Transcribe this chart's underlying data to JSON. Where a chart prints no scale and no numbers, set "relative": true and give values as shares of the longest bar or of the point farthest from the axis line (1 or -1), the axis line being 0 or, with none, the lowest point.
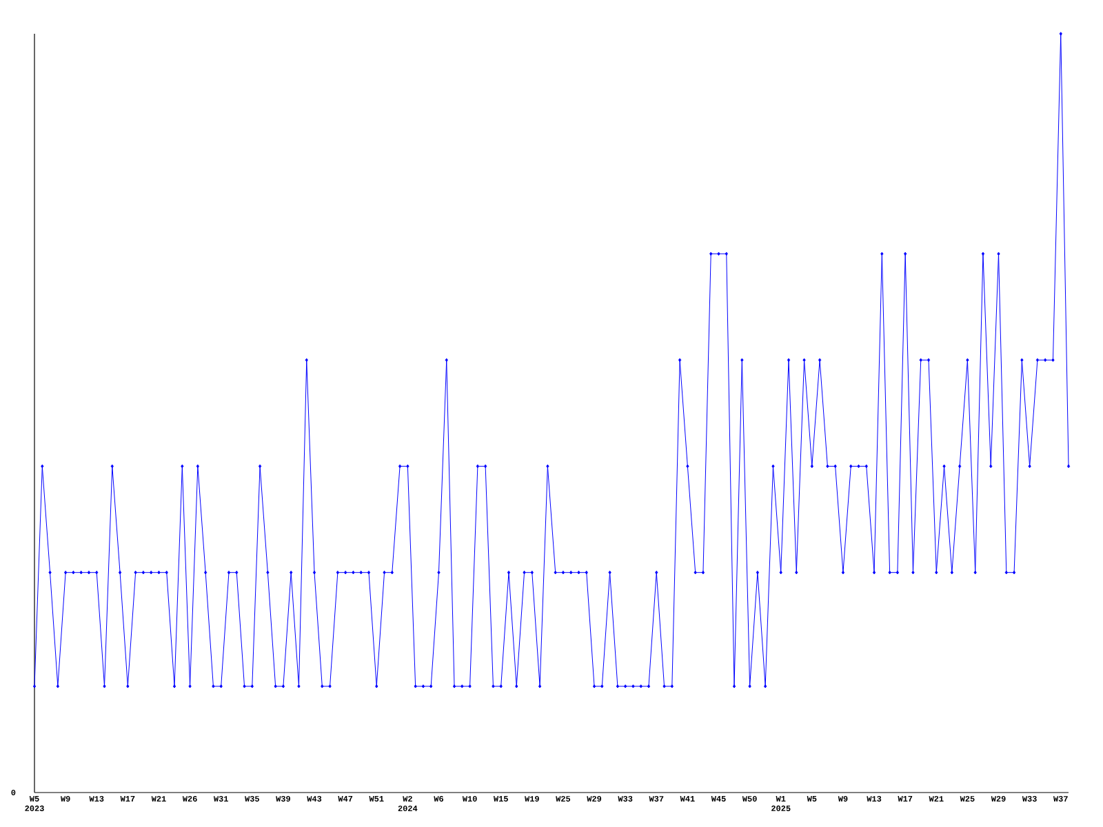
{
  "chart_data": {
    "type": "line",
    "relative": true,
    "color": "#0000ff",
    "marker": "diamond",
    "line_style": "solid",
    "categories": [
      "W5 2023",
      null,
      null,
      null,
      "W9",
      null,
      null,
      null,
      "W13",
      null,
      null,
      null,
      "W17",
      null,
      null,
      null,
      "W21",
      null,
      null,
      null,
      "W26",
      null,
      null,
      null,
      "W31",
      null,
      null,
      null,
      "W35",
      null,
      null,
      null,
      "W39",
      null,
      null,
      null,
      "W43",
      null,
      null,
      null,
      "W47",
      null,
      null,
      null,
      "W51",
      null,
      null,
      null,
      "W2 2024",
      null,
      null,
      null,
      "W6",
      null,
      null,
      null,
      "W10",
      null,
      null,
      null,
      "W15",
      null,
      null,
      null,
      "W19",
      null,
      null,
      null,
      "W25",
      null,
      null,
      null,
      "W29",
      null,
      null,
      null,
      "W33",
      null,
      null,
      null,
      "W37",
      null,
      null,
      null,
      "W41",
      null,
      null,
      null,
      "W45",
      null,
      null,
      null,
      "W50",
      null,
      null,
      null,
      "W1 2025",
      null,
      null,
      null,
      "W5",
      null,
      null,
      null,
      "W9",
      null,
      null,
      null,
      "W13",
      null,
      null,
      null,
      "W17",
      null,
      null,
      null,
      "W21",
      null,
      null,
      null,
      "W25",
      null,
      null,
      null,
      "W29",
      null,
      null,
      null,
      "W33",
      null,
      null,
      null,
      "W37",
      null
    ],
    "values": [
      0.14,
      0.43,
      0.29,
      0.14,
      0.29,
      0.29,
      0.29,
      0.29,
      0.29,
      0.14,
      0.43,
      0.29,
      0.14,
      0.29,
      0.29,
      0.29,
      0.29,
      0.29,
      0.14,
      0.43,
      0.14,
      0.43,
      0.29,
      0.14,
      0.14,
      0.29,
      0.29,
      0.14,
      0.14,
      0.43,
      0.29,
      0.14,
      0.14,
      0.29,
      0.14,
      0.57,
      0.29,
      0.14,
      0.14,
      0.29,
      0.29,
      0.29,
      0.29,
      0.29,
      0.14,
      0.29,
      0.29,
      0.43,
      0.43,
      0.14,
      0.14,
      0.14,
      0.29,
      0.57,
      0.14,
      0.14,
      0.14,
      0.43,
      0.43,
      0.14,
      0.14,
      0.29,
      0.14,
      0.29,
      0.29,
      0.14,
      0.43,
      0.29,
      0.29,
      0.29,
      0.29,
      0.29,
      0.14,
      0.14,
      0.29,
      0.14,
      0.14,
      0.14,
      0.14,
      0.14,
      0.29,
      0.14,
      0.14,
      0.57,
      0.43,
      0.29,
      0.29,
      0.71,
      0.71,
      0.71,
      0.14,
      0.57,
      0.14,
      0.29,
      0.14,
      0.43,
      0.29,
      0.57,
      0.29,
      0.57,
      0.43,
      0.57,
      0.43,
      0.43,
      0.29,
      0.43,
      0.43,
      0.43,
      0.29,
      0.71,
      0.29,
      0.29,
      0.71,
      0.29,
      0.57,
      0.57,
      0.29,
      0.43,
      0.29,
      0.43,
      0.57,
      0.29,
      0.71,
      0.43,
      0.71,
      0.29,
      0.29,
      0.57,
      0.43,
      0.57,
      0.57,
      0.57,
      1,
      0.43
    ],
    "annotations": [
      "0"
    ]
  }
}
